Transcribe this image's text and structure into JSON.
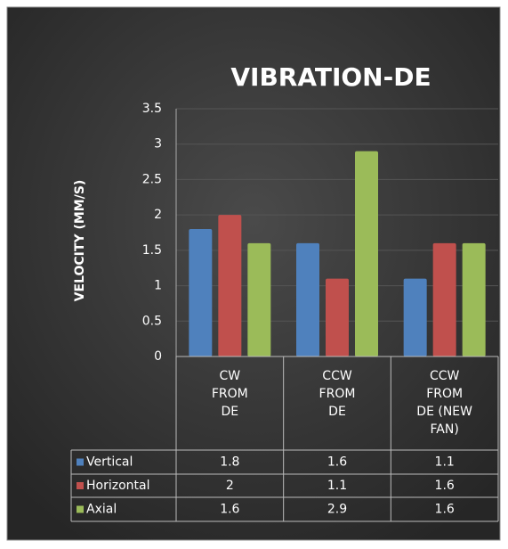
{
  "chart_data": {
    "type": "bar",
    "title": "VIBRATION-DE",
    "y_label": "VELOCITY (MM/S)",
    "categories": [
      "CW FROM DE",
      "CCW FROM DE",
      "CCW FROM DE (NEW FAN)"
    ],
    "series": [
      {
        "name": "Vertical",
        "color": "#4f81bd",
        "values": [
          1.8,
          1.6,
          1.1
        ]
      },
      {
        "name": "Horizontal",
        "color": "#c0504d",
        "values": [
          2,
          1.1,
          1.6
        ]
      },
      {
        "name": "Axial",
        "color": "#9bbb59",
        "values": [
          1.6,
          2.9,
          1.6
        ]
      }
    ],
    "ylim": [
      0,
      3.5
    ],
    "yticks": [
      0,
      0.5,
      1,
      1.5,
      2,
      2.5,
      3,
      3.5
    ],
    "grid": true,
    "data_table": true
  }
}
